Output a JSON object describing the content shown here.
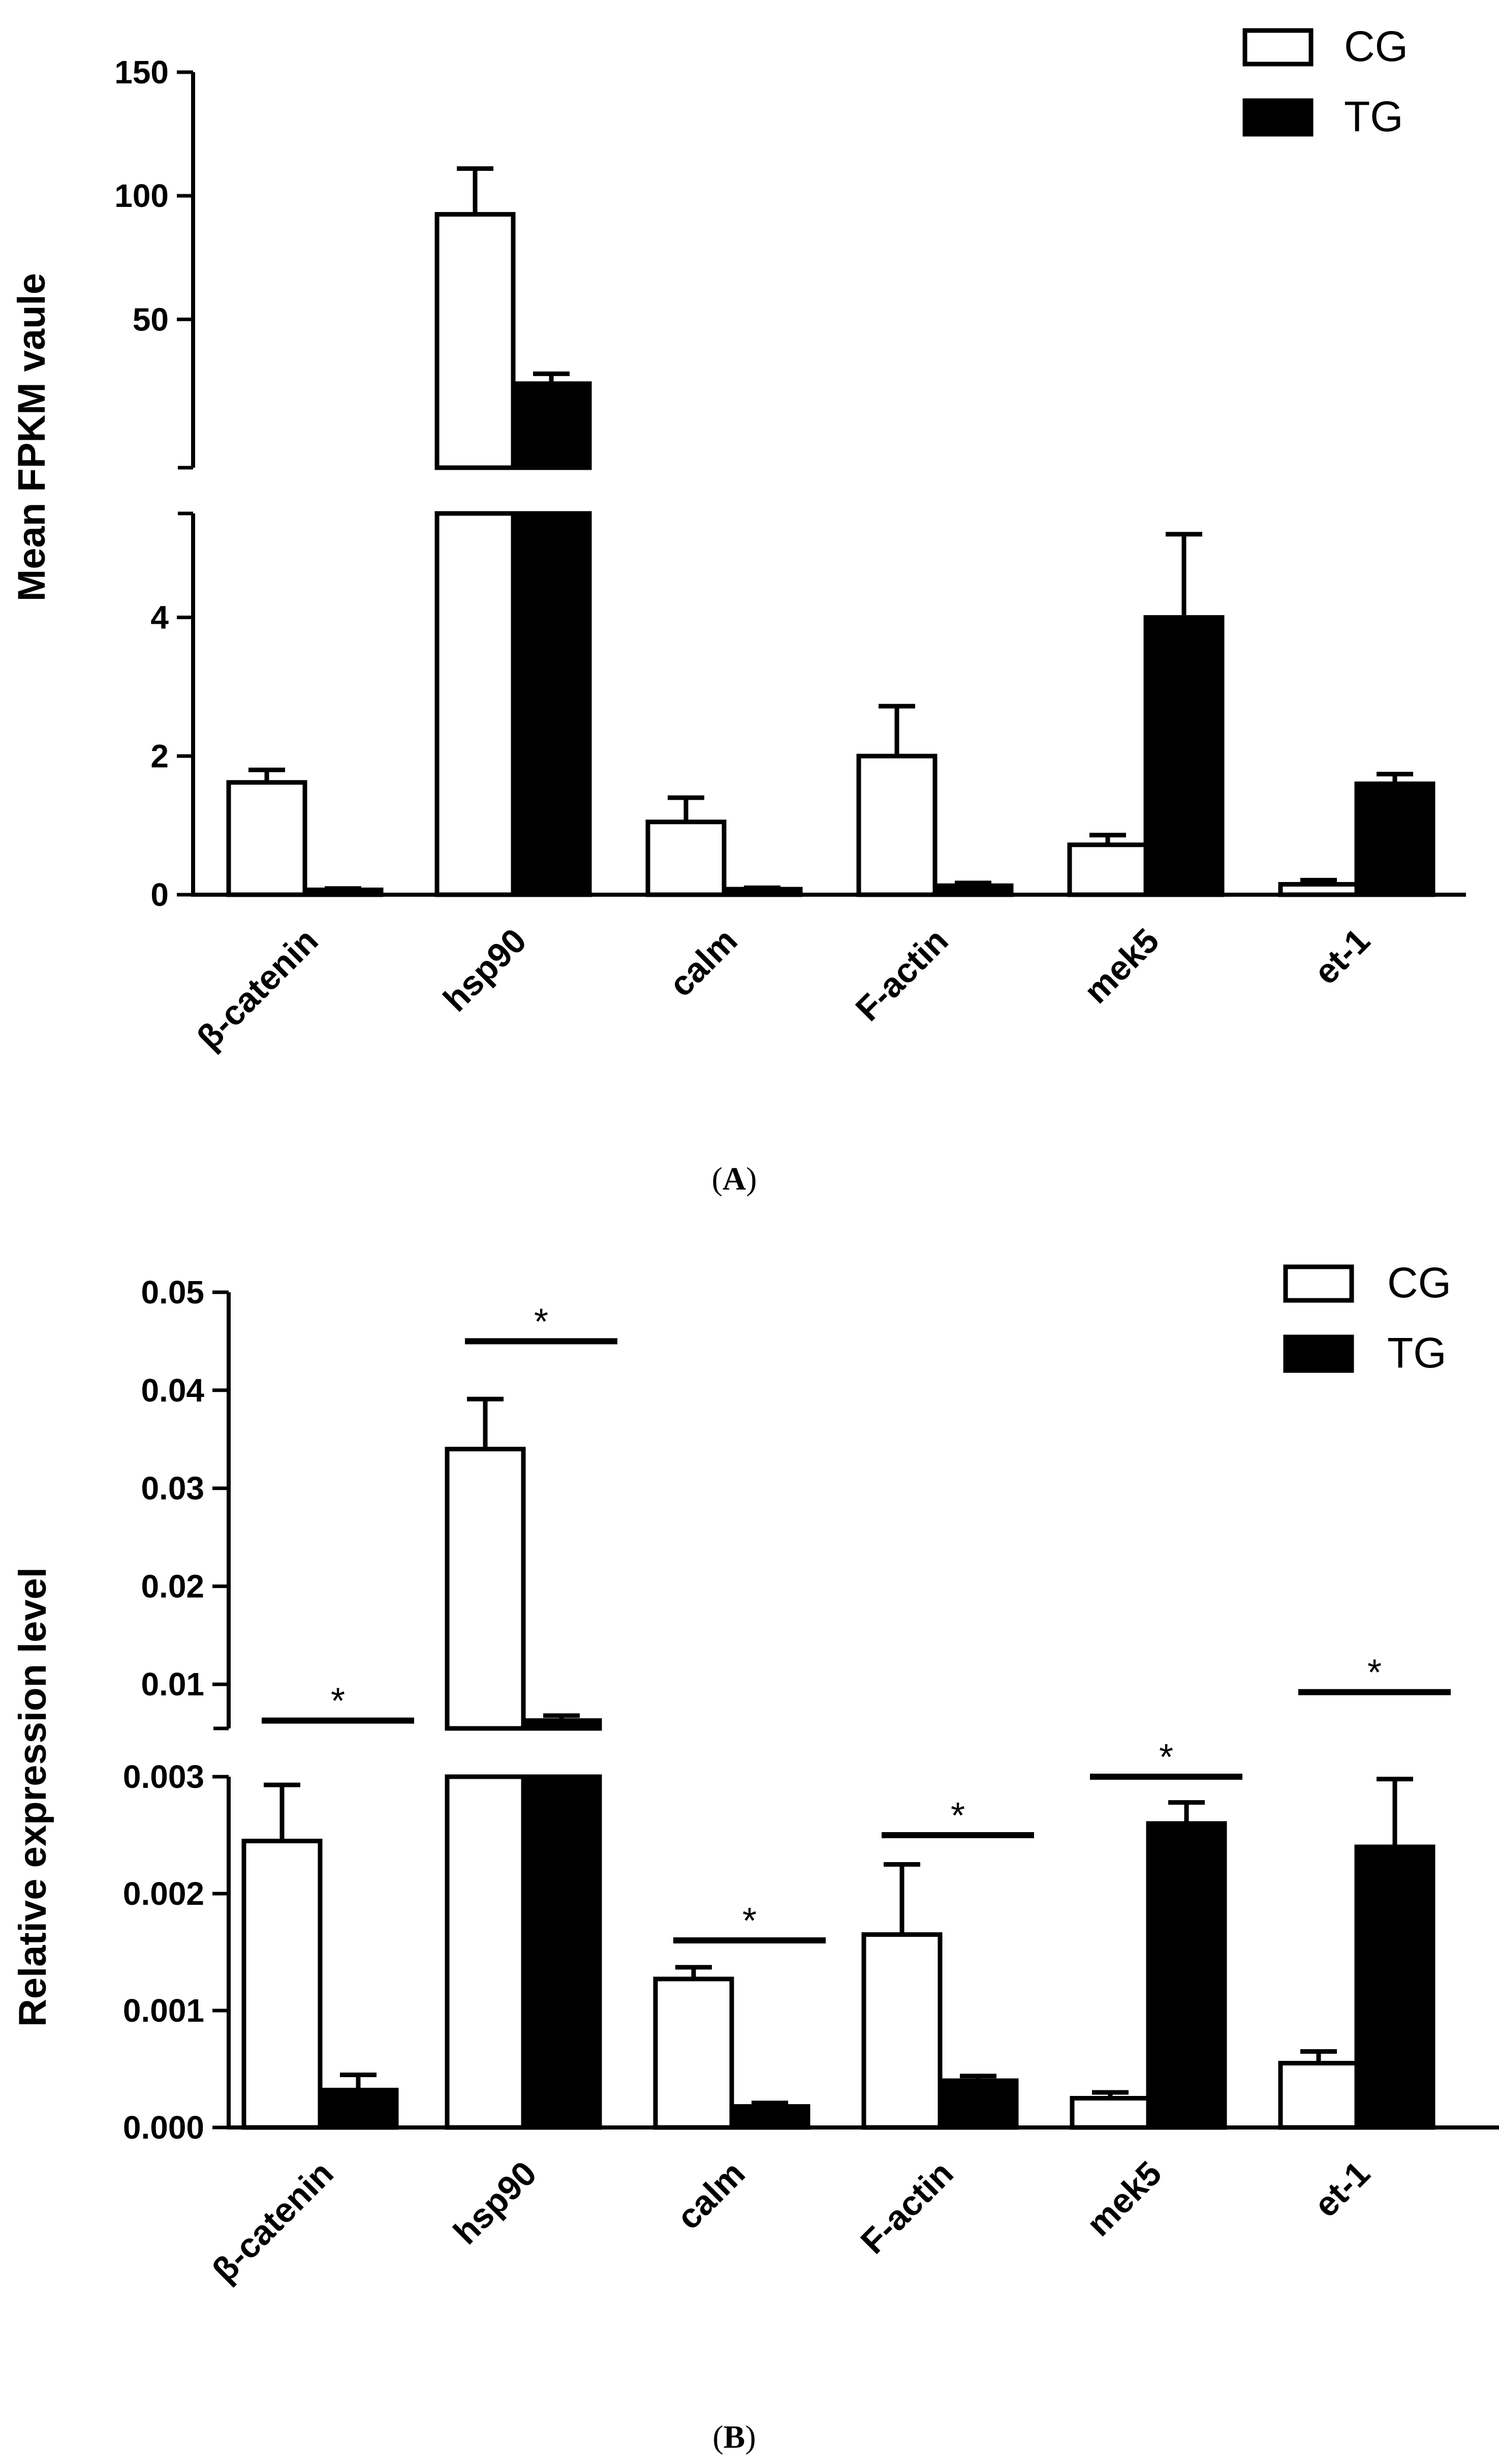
{
  "chart_data": [
    {
      "type": "bar",
      "panel_label": "A",
      "ylabel": "Mean FPKM vaule",
      "categories": [
        "β-catenin",
        "hsp90",
        "calm",
        "F-actin",
        "mek5",
        "et-1"
      ],
      "series": [
        {
          "name": "CG",
          "fill": "#ffffff",
          "values": [
            1.62,
            92.5,
            1.05,
            2.0,
            0.72,
            0.15
          ],
          "errors": [
            0.18,
            18.5,
            0.35,
            0.72,
            0.14,
            0.06
          ]
        },
        {
          "name": "TG",
          "fill": "#000000",
          "values": [
            0.07,
            24.0,
            0.08,
            0.13,
            4.0,
            1.6
          ],
          "errors": [
            0.02,
            4.0,
            0.02,
            0.04,
            1.2,
            0.14
          ]
        }
      ],
      "y_axis_broken": true,
      "y_segments": [
        {
          "range": [
            0,
            5.5
          ],
          "ticks": [
            0,
            2,
            4
          ],
          "tick_labels": [
            "0",
            "2",
            "4"
          ]
        },
        {
          "range": [
            -10,
            150
          ],
          "ticks": [
            50,
            100,
            150
          ],
          "tick_labels": [
            "50",
            "100",
            "150"
          ]
        }
      ],
      "legend": {
        "position": "top-right",
        "entries": [
          "CG",
          "TG"
        ]
      },
      "significance": []
    },
    {
      "type": "bar",
      "panel_label": "B",
      "ylabel": "Relative expression level",
      "categories": [
        "β-catenin",
        "hsp90",
        "calm",
        "F-actin",
        "mek5",
        "et-1"
      ],
      "series": [
        {
          "name": "CG",
          "fill": "#ffffff",
          "values": [
            0.00245,
            0.034,
            0.00127,
            0.00165,
            0.00025,
            0.00055
          ],
          "errors": [
            0.00048,
            0.0051,
            0.0001,
            0.0006,
            5e-05,
            0.0001
          ]
        },
        {
          "name": "TG",
          "fill": "#000000",
          "values": [
            0.00032,
            0.0063,
            0.00018,
            0.0004,
            0.0026,
            0.0024
          ],
          "errors": [
            0.00013,
            0.0005,
            3e-05,
            4e-05,
            0.00018,
            0.00058
          ]
        }
      ],
      "y_axis_broken": true,
      "y_segments": [
        {
          "range": [
            0,
            0.003
          ],
          "ticks": [
            0,
            0.001,
            0.002,
            0.003
          ],
          "tick_labels": [
            "0.000",
            "0.001",
            "0.002",
            "0.003"
          ]
        },
        {
          "range": [
            0.0055,
            0.05
          ],
          "ticks": [
            0.01,
            0.02,
            0.03,
            0.04,
            0.05
          ],
          "tick_labels": [
            "0.01",
            "0.02",
            "0.03",
            "0.04",
            "0.05"
          ]
        }
      ],
      "legend": {
        "position": "top-right",
        "entries": [
          "CG",
          "TG"
        ]
      },
      "significance": [
        {
          "category": "β-catenin",
          "label": "*",
          "level": 0.0063
        },
        {
          "category": "hsp90",
          "label": "*",
          "level": 0.045
        },
        {
          "category": "calm",
          "label": "*",
          "level": 0.0016
        },
        {
          "category": "F-actin",
          "label": "*",
          "level": 0.0025
        },
        {
          "category": "mek5",
          "label": "*",
          "level": 0.003
        },
        {
          "category": "et-1",
          "label": "*",
          "level": 0.0092
        }
      ]
    }
  ]
}
